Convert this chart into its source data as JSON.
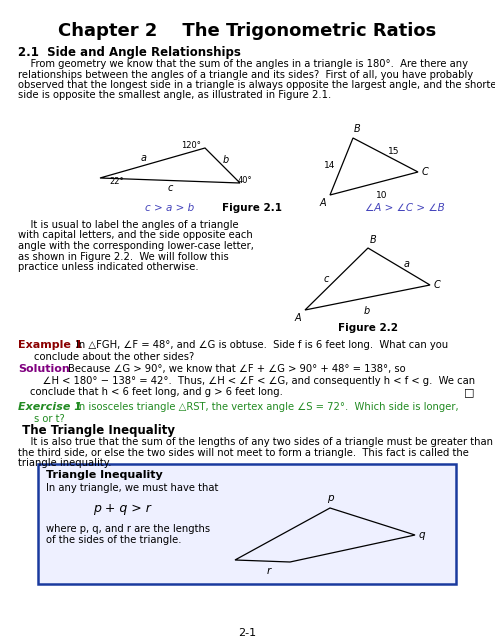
{
  "title": "Chapter 2    The Trigonometric Ratios",
  "bg_color": "#ffffff",
  "page_number": "2-1",
  "section_title": "2.1  Side and Angle Relationships",
  "para1_lines": [
    "    From geometry we know that the sum of the angles in a triangle is 180°.  Are there any",
    "relationships between the angles of a triangle and its sides?  First of all, you have probably",
    "observed that the longest side in a triangle is always opposite the largest angle, and the shortest",
    "side is opposite the smallest angle, as illustrated in Figure 2.1."
  ],
  "fig21_caption": "Figure 2.1",
  "fig21_label_left": "c > a > b",
  "fig21_label_right": "∠A > ∠C > ∠B",
  "fig22_caption": "Figure 2.2",
  "para2_lines": [
    "    It is usual to label the angles of a triangle",
    "with capital letters, and the side opposite each",
    "angle with the corresponding lower-case letter,",
    "as shown in Figure 2.2.  We will follow this",
    "practice unless indicated otherwise."
  ],
  "example1_label": "Example 1",
  "example1_line1": "In △FGH, ∠F = 48°, and ∠G is obtuse.  Side f is 6 feet long.  What can you",
  "example1_line2": "conclude about the other sides?",
  "solution_label": "Solution",
  "solution_line1": "Because ∠G > 90°, we know that ∠F + ∠G > 90° + 48° = 138°, so",
  "solution_line2": "    ∠H < 180° − 138° = 42°.  Thus, ∠H < ∠F < ∠G, and consequently h < f < g.  We can",
  "solution_line3": "conclude that h < 6 feet long, and g > 6 feet long.",
  "exercise1_label": "Exercise 1",
  "exercise1_line1": "In isosceles triangle △RST, the vertex angle ∠S = 72°.  Which side is longer,",
  "exercise1_line2": "s or t?",
  "triangle_ineq_title": " The Triangle Inequality",
  "ineq_para_lines": [
    "    It is also true that the sum of the lengths of any two sides of a triangle must be greater than",
    "the third side, or else the two sides will not meet to form a triangle.  This fact is called the",
    "triangle inequality."
  ],
  "box_title": "Triangle Inequality",
  "box_text1": "In any triangle, we must have that",
  "box_formula": "p + q > r",
  "box_text2a": "where p, q, and r are the lengths",
  "box_text2b": "of the sides of the triangle.",
  "example_color": "#8B0000",
  "exercise_color": "#228B22",
  "solution_color": "#800080",
  "box_border_color": "#1a3a9e",
  "tri_fig21_left": {
    "vx": [
      100,
      205,
      240
    ],
    "vy": [
      178,
      148,
      183
    ],
    "angle_labels": [
      "22°",
      "120°",
      "40°"
    ],
    "side_labels": [
      "a",
      "b",
      "c"
    ]
  },
  "tri_fig21_right": {
    "vx": [
      330,
      353,
      418
    ],
    "vy": [
      195,
      138,
      172
    ],
    "vertex_labels": [
      "A",
      "B",
      "C"
    ],
    "side_labels": [
      "14",
      "15",
      "10"
    ]
  },
  "tri_fig22": {
    "vx": [
      305,
      368,
      430
    ],
    "vy": [
      310,
      248,
      285
    ],
    "vertex_labels": [
      "A",
      "B",
      "C"
    ],
    "side_labels": [
      "c",
      "a",
      "b"
    ]
  },
  "tri_box": {
    "vx": [
      235,
      330,
      415,
      290
    ],
    "vy": [
      560,
      508,
      535,
      562
    ]
  }
}
